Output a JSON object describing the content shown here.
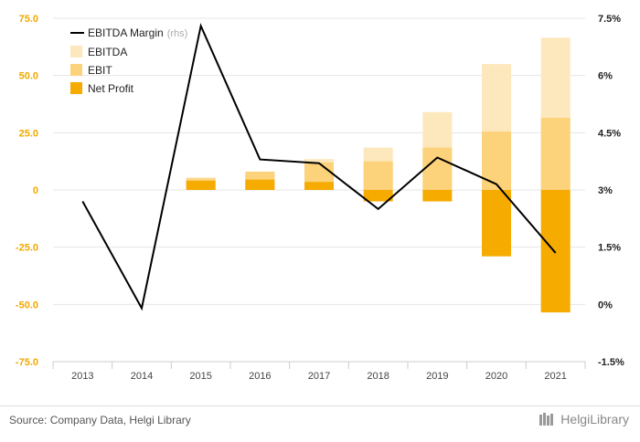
{
  "colors": {
    "ebitda": "#fde8bd",
    "ebit": "#fcd27a",
    "net_profit": "#f5ab00",
    "margin_line": "#000000",
    "left_axis_text": "#f0a800",
    "right_axis_text": "#222222",
    "grid": "#e6e6e6"
  },
  "chart_data": {
    "type": "bar",
    "categories": [
      "2013",
      "2014",
      "2015",
      "2016",
      "2017",
      "2018",
      "2019",
      "2020",
      "2021"
    ],
    "y_left": {
      "ticks": [
        "75.0",
        "50.0",
        "25.0",
        "0",
        "-25.0",
        "-50.0",
        "-75.0"
      ],
      "lim": [
        -75,
        75
      ]
    },
    "y_right": {
      "ticks": [
        "7.5%",
        "6%",
        "4.5%",
        "3%",
        "1.5%",
        "0%",
        "-1.5%"
      ],
      "lim": [
        -1.5,
        7.5
      ]
    },
    "series": [
      {
        "name": "EBITDA",
        "values": [
          null,
          null,
          5.5,
          8.0,
          13.5,
          18.5,
          34.0,
          55.0,
          66.5
        ]
      },
      {
        "name": "EBIT",
        "values": [
          null,
          null,
          5.0,
          8.0,
          12.0,
          12.5,
          18.5,
          25.5,
          31.5
        ]
      },
      {
        "name": "Net Profit",
        "values": [
          null,
          null,
          4.0,
          4.5,
          3.5,
          -5.0,
          -5.0,
          -29.0,
          -53.5
        ]
      }
    ],
    "line_series": {
      "name": "EBITDA Margin",
      "name_suffix": "(rhs)",
      "axis": "right",
      "values": [
        2.7,
        -0.1,
        7.3,
        3.8,
        3.7,
        2.5,
        3.85,
        3.15,
        1.35
      ]
    },
    "legend_position": "top-left",
    "grid": true
  },
  "footer": {
    "source": "Source: Company Data, Helgi Library",
    "logo": "HelgiLibrary"
  }
}
